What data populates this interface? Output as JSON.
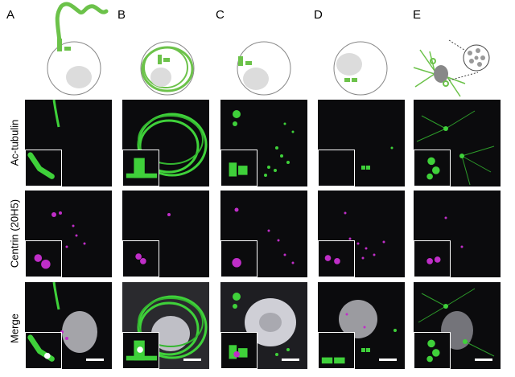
{
  "columns": [
    "A",
    "B",
    "C",
    "D",
    "E"
  ],
  "rows": [
    "Ac-tubulin",
    "Centrin (20H5)",
    "Merge"
  ],
  "colors": {
    "tubulin": "#3fd13a",
    "centrin": "#c02ec8",
    "nucleus": "#d8d8dc",
    "cell_outline": "#888888",
    "cell_fill": "#ffffff",
    "schematic_green": "#6cc24a",
    "schematic_nucleus": "#dcdcdc",
    "background": "#0b0b0d"
  },
  "schematic_icons": [
    "flagellated-cell-icon",
    "cell-with-looping-filaments-icon",
    "cell-with-basal-bodies-icon",
    "cell-with-centrioles-icon",
    "mitotic-cell-with-zoom-icon"
  ],
  "has_scale_bar": true
}
